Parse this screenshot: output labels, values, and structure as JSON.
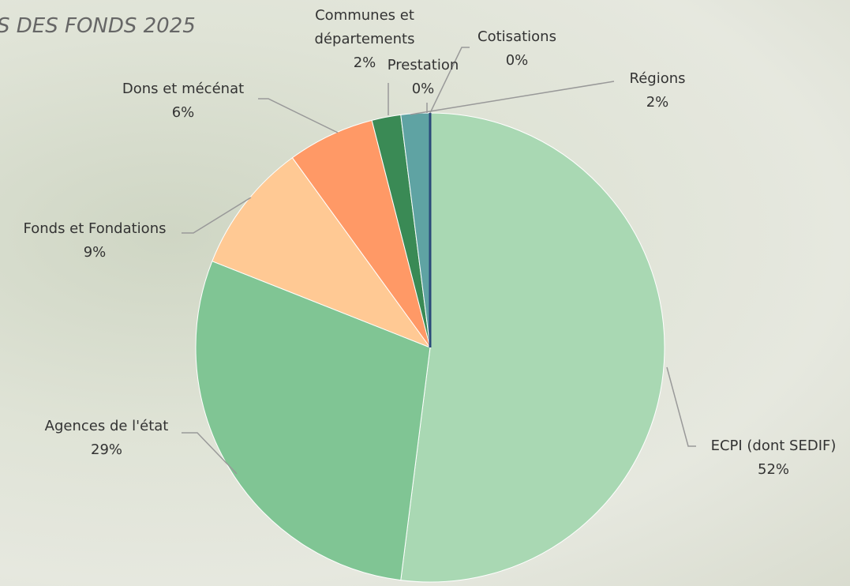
{
  "chart_data": {
    "type": "pie",
    "title": "S DES FONDS 2025",
    "categories": [
      "ECPI (dont SEDIF)",
      "Agences de l'état",
      "Fonds et Fondations",
      "Dons et mécénat",
      "Communes et départements",
      "Régions",
      "Prestation",
      "Cotisations"
    ],
    "values": [
      52,
      29,
      9,
      6,
      2,
      2,
      0,
      0
    ],
    "value_labels": [
      "52%",
      "29%",
      "9%",
      "6%",
      "2%",
      "2%",
      "0%",
      "0%"
    ],
    "colors": [
      "#a9d8b3",
      "#80c594",
      "#ffc994",
      "#ff9966",
      "#3a8a55",
      "#5fa3a3",
      "#1f5f8a",
      "#2a4a7a"
    ]
  }
}
